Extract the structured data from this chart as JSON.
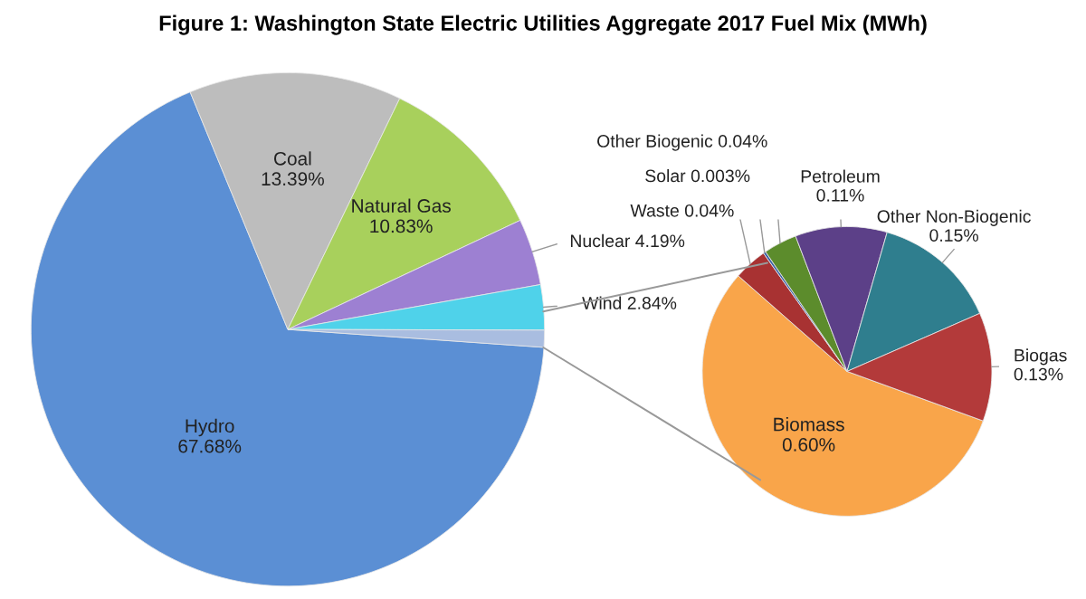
{
  "chart_data": [
    {
      "type": "pie",
      "title": "Figure 1: Washington State Electric Utilities Aggregate 2017 Fuel Mix (MWh)",
      "categories": [
        "Hydro",
        "Coal",
        "Natural Gas",
        "Nuclear",
        "Wind",
        null
      ],
      "values": [
        67.68,
        13.39,
        10.83,
        4.19,
        2.84,
        1.07
      ],
      "value_labels": [
        "67.68%",
        "13.39%",
        "10.83%",
        "4.19%",
        "2.84%",
        null
      ],
      "colors": [
        "#5b8fd4",
        "#bdbdbd",
        "#a8d05c",
        "#9d80d2",
        "#4fd2ea",
        "#a9bde0"
      ]
    },
    {
      "type": "pie",
      "categories": [
        "Biomass",
        "Waste",
        "Solar",
        "Other Biogenic",
        "Petroleum",
        "Other Non-Biogenic",
        "Biogas"
      ],
      "values": [
        0.6,
        0.04,
        0.003,
        0.04,
        0.11,
        0.15,
        0.13
      ],
      "value_labels": [
        "0.60%",
        "0.04%",
        "0.003%",
        "0.04%",
        "0.11%",
        "0.15%",
        "0.13%"
      ],
      "colors": [
        "#f9a54a",
        "#a83232",
        "#3d62a6",
        "#5c8c2c",
        "#5c4088",
        "#2f7e8e",
        "#b33a3a"
      ]
    }
  ]
}
